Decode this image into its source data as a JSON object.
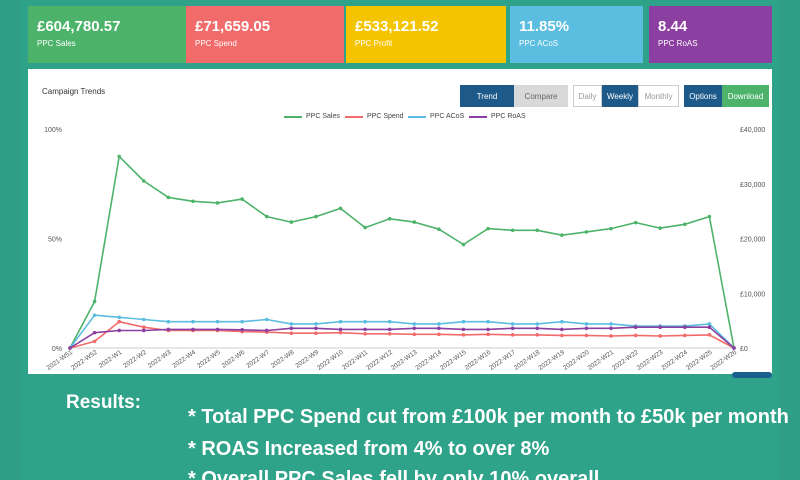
{
  "kpis": [
    {
      "value": "£604,780.57",
      "label": "PPC Sales",
      "color": "#4db36a"
    },
    {
      "value": "£71,659.05",
      "label": "PPC Spend",
      "color": "#f26b6b"
    },
    {
      "value": "£533,121.52",
      "label": "PPC Profit",
      "color": "#f5c400"
    },
    {
      "value": "11.85%",
      "label": "PPC ACoS",
      "color": "#5bbde0"
    },
    {
      "value": "8.44",
      "label": "PPC RoAS",
      "color": "#8b3fa0"
    }
  ],
  "panel": {
    "title": "Campaign Trends",
    "view_buttons": {
      "trend": "Trend",
      "compare": "Compare"
    },
    "period_buttons": {
      "daily": "Daily",
      "weekly": "Weekly",
      "monthly": "Monthly"
    },
    "action_buttons": {
      "options": "Options",
      "download": "Download"
    }
  },
  "chart_data": {
    "type": "line",
    "title": "",
    "categories": [
      "2021-W51",
      "2022-W52",
      "2022-W1",
      "2022-W2",
      "2022-W3",
      "2022-W4",
      "2022-W5",
      "2022-W6",
      "2022-W7",
      "2022-W8",
      "2022-W9",
      "2022-W10",
      "2022-W11",
      "2022-W12",
      "2022-W13",
      "2022-W14",
      "2022-W15",
      "2022-W16",
      "2022-W17",
      "2022-W18",
      "2022-W19",
      "2022-W20",
      "2022-W21",
      "2022-W22",
      "2022-W23",
      "2022-W24",
      "2022-W25",
      "2022-W26"
    ],
    "left_axis": {
      "ticks": [
        "100%",
        "50%",
        "0%"
      ],
      "ylim": [
        0,
        100
      ]
    },
    "right_axis": {
      "ticks": [
        "£40,000",
        "£30,000",
        "£20,000",
        "£10,000",
        "£0"
      ],
      "ylim": [
        0,
        40000
      ]
    },
    "series": [
      {
        "name": "PPC Sales",
        "color": "#4db36a",
        "axis": "right",
        "values": [
          0,
          8500,
          35000,
          30500,
          27500,
          26800,
          26500,
          27200,
          24000,
          23000,
          24000,
          25500,
          22000,
          23600,
          23000,
          21700,
          18900,
          21800,
          21500,
          21500,
          20600,
          21200,
          21800,
          22900,
          21900,
          22600,
          24000,
          0
        ]
      },
      {
        "name": "PPC Spend",
        "color": "#f26b6b",
        "axis": "right",
        "values": [
          0,
          1200,
          4800,
          3800,
          3200,
          3200,
          3200,
          3000,
          2900,
          2700,
          2700,
          2800,
          2600,
          2600,
          2500,
          2500,
          2400,
          2500,
          2400,
          2400,
          2300,
          2300,
          2200,
          2300,
          2200,
          2300,
          2400,
          0
        ]
      },
      {
        "name": "PPC ACoS",
        "color": "#5bbde0",
        "axis": "left",
        "values": [
          0,
          15,
          14,
          13,
          12,
          12,
          12,
          12,
          13,
          11,
          11,
          12,
          12,
          12,
          11,
          11,
          12,
          12,
          11,
          11,
          12,
          11,
          11,
          10,
          10,
          10,
          11,
          0
        ]
      },
      {
        "name": "PPC RoAS",
        "color": "#8b3fa0",
        "axis": "left",
        "values": [
          0,
          7,
          8,
          8,
          8.5,
          8.5,
          8.5,
          8.3,
          8,
          9,
          9,
          8.5,
          8.5,
          8.5,
          9,
          9,
          8.5,
          8.5,
          9,
          9,
          8.5,
          9,
          9,
          9.5,
          9.5,
          9.5,
          9.5,
          0
        ]
      }
    ]
  },
  "results": {
    "heading": "Results:",
    "lines": [
      "* Total PPC Spend cut from £100k per month to £50k per month",
      "* ROAS Increased from 4% to over 8%",
      "* Overall PPC Sales fell by only 10% overall"
    ]
  }
}
